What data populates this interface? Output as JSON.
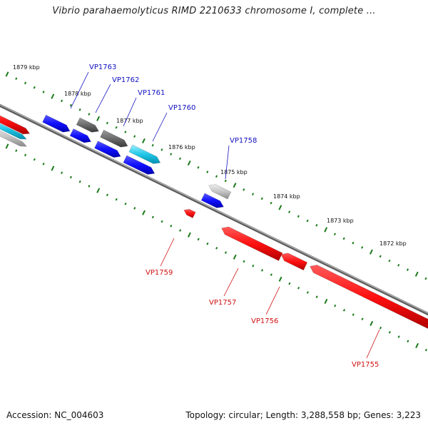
{
  "header": {
    "title": "Vibrio parahaemolyticus RIMD 2210633 chromosome I, complete ..."
  },
  "footer": {
    "accession": "Accession: NC_004603",
    "summary": "Topology: circular; Length: 3,288,558 bp; Genes: 3,223"
  },
  "ticks": [
    "1879 kbp",
    "1878 kbp",
    "1877 kbp",
    "1876 kbp",
    "1875 kbp",
    "1874 kbp",
    "1873 kbp",
    "1872 kbp"
  ],
  "genes_forward": [
    "VP1763",
    "VP1762",
    "VP1761",
    "VP1760",
    "VP1758"
  ],
  "genes_reverse": [
    "VP1759",
    "VP1757",
    "VP1756",
    "VP1755"
  ],
  "colors": {
    "forward": "#0000ff",
    "reverse": "#ff0000",
    "neutral": "#6b6b6b",
    "light": "#bdbdbd",
    "cyan": "#22c8e8",
    "tick": "#1a7a1a",
    "label_forward": "#1010c0",
    "label_reverse": "#d01010"
  }
}
